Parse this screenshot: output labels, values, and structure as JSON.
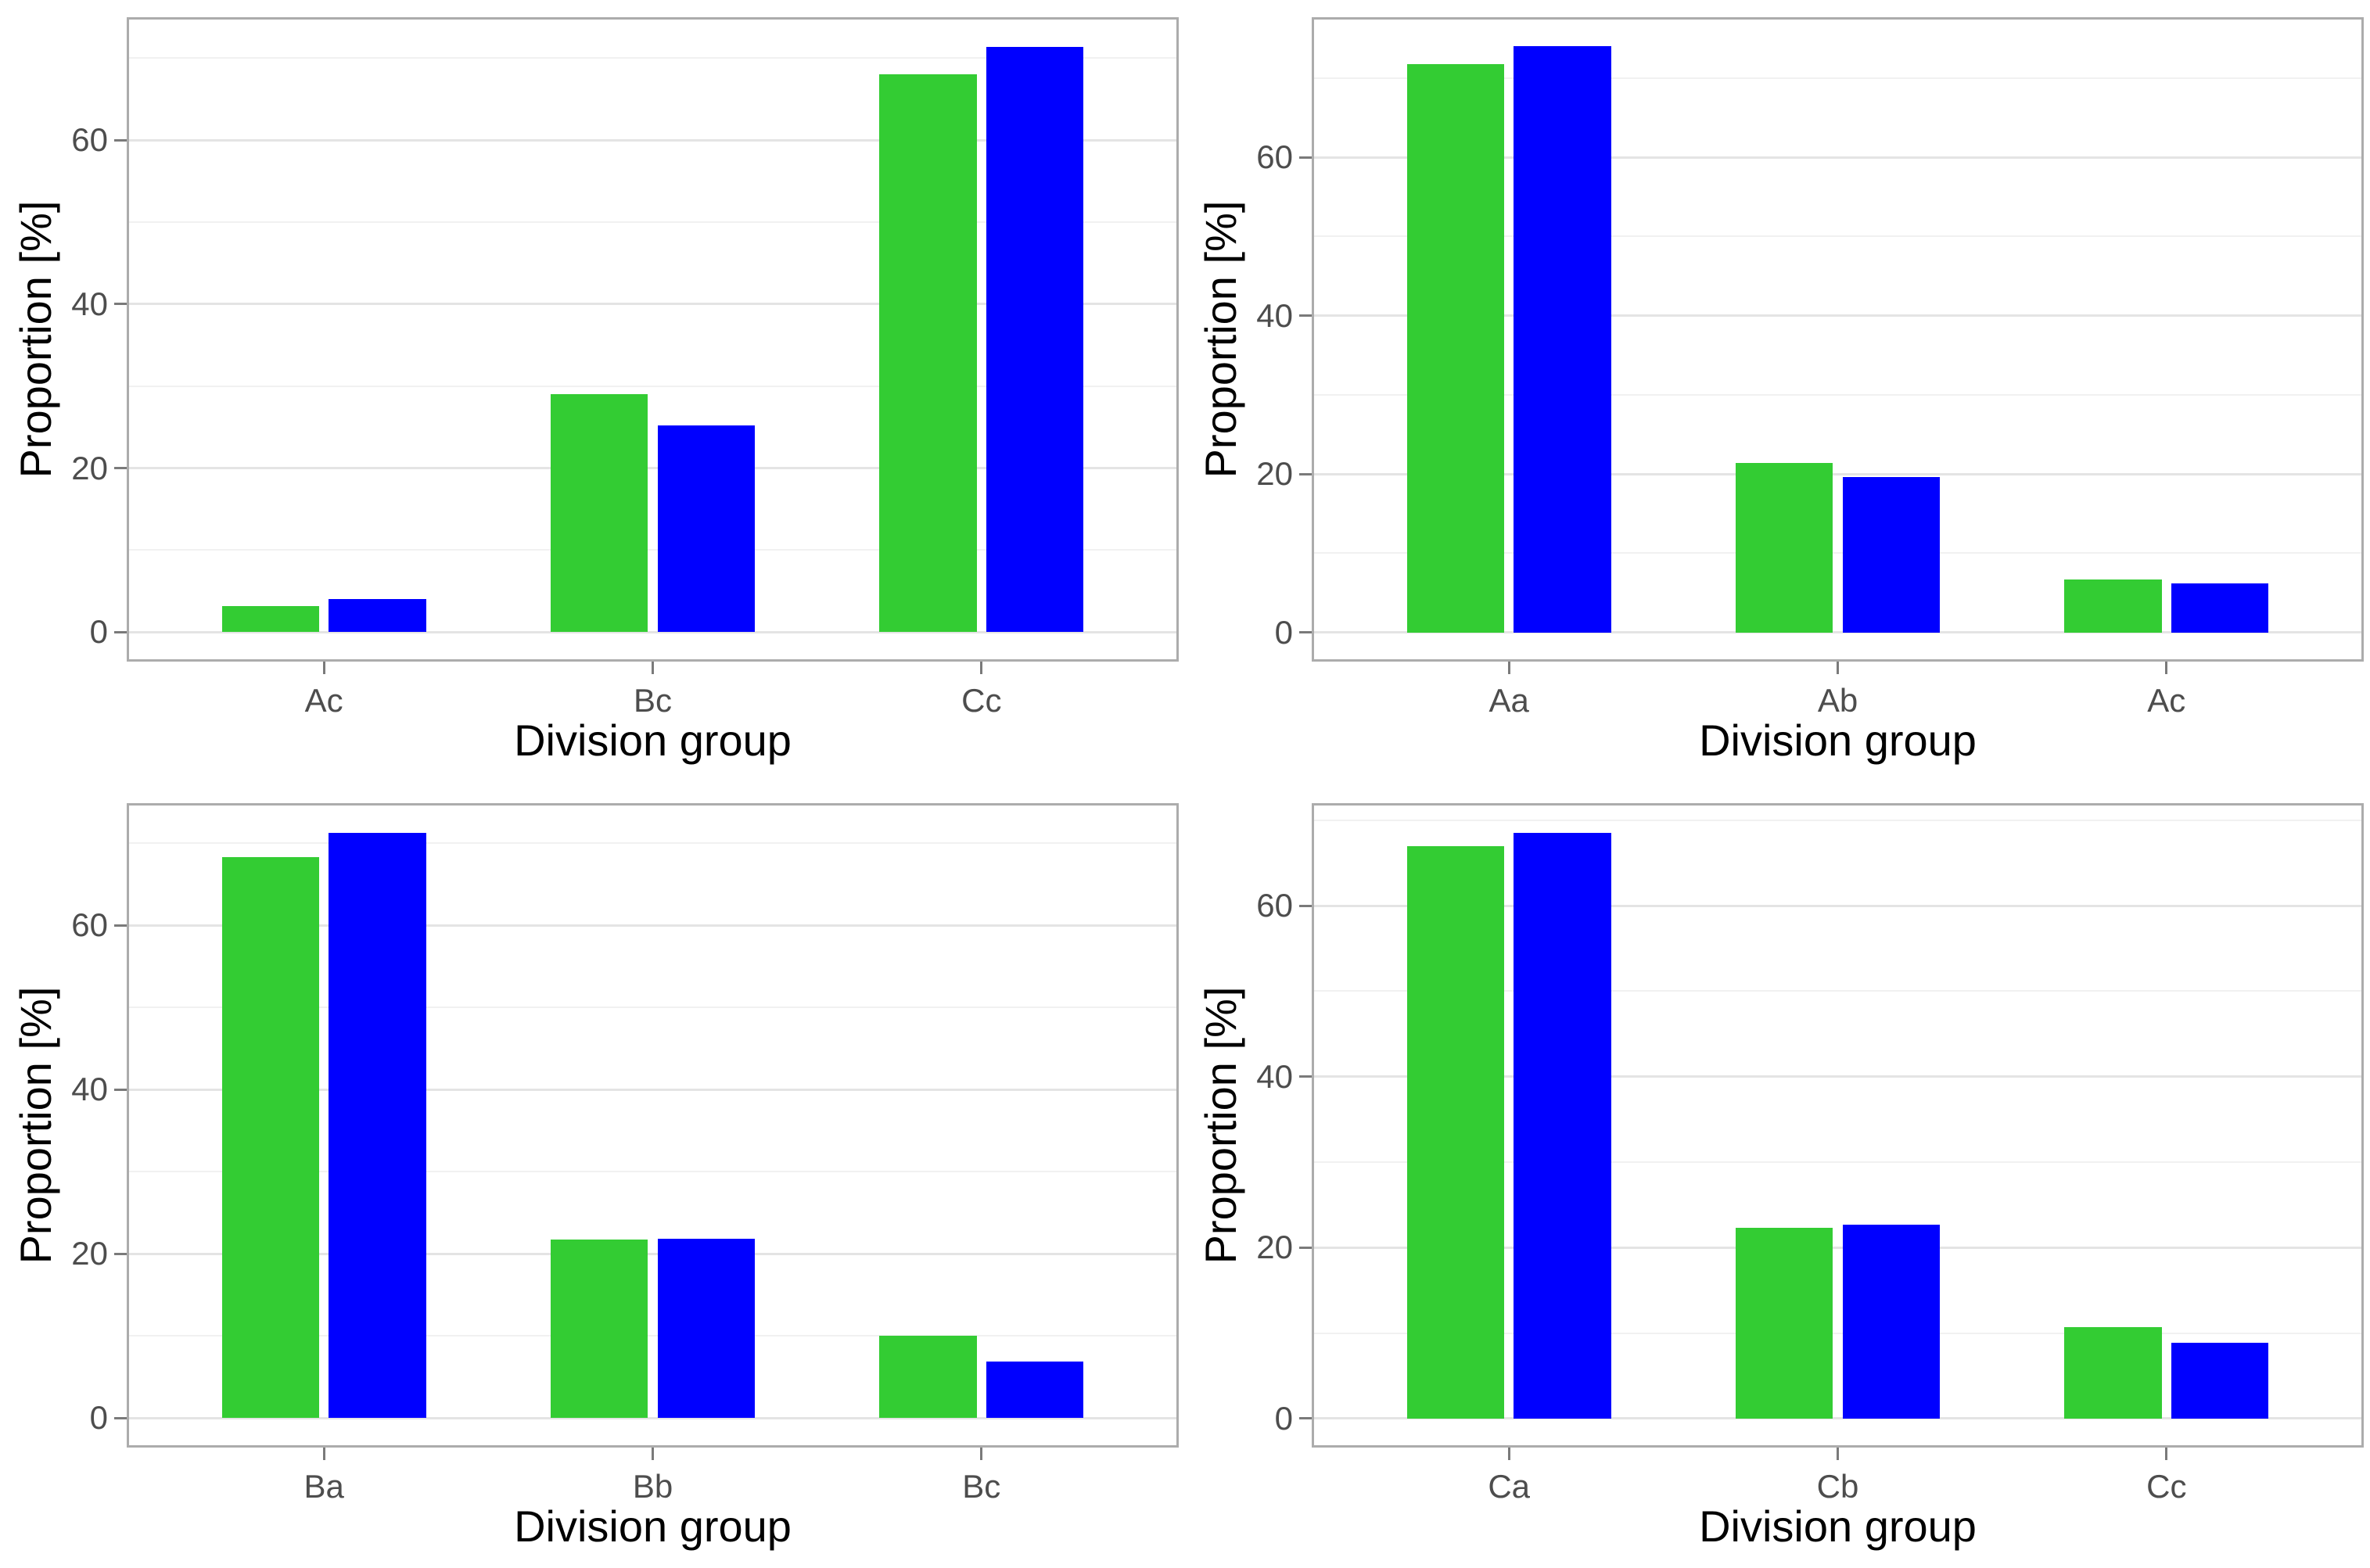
{
  "figure": {
    "xlabel": "Division group",
    "ylabel": "Proportion [%]",
    "y_tick_labels": [
      "0",
      "20",
      "40",
      "60"
    ],
    "colors": {
      "green_bar": "#33CC33",
      "blue_bar": "#0000FF",
      "axis_text": "#4D4D4D",
      "panel_border": "#ACACAC"
    }
  },
  "chart_data": [
    {
      "type": "bar",
      "panel": "top-left",
      "xlabel": "Division group",
      "ylabel": "Proportion [%]",
      "categories": [
        "Ac",
        "Bc",
        "Cc"
      ],
      "series": [
        {
          "name": "green",
          "color": "#33CC33",
          "values": [
            3.2,
            29.0,
            68.0
          ]
        },
        {
          "name": "blue",
          "color": "#0000FF",
          "values": [
            4.0,
            25.2,
            71.4
          ]
        }
      ],
      "y_major_ticks": [
        0,
        20,
        40,
        60
      ],
      "y_minor_gridlines": [
        10,
        30,
        50,
        70
      ],
      "ylim": [
        -3.6,
        75.0
      ],
      "grid": true,
      "legend": "none"
    },
    {
      "type": "bar",
      "panel": "top-right",
      "xlabel": "Division group",
      "ylabel": "Proportion [%]",
      "categories": [
        "Aa",
        "Ab",
        "Ac"
      ],
      "series": [
        {
          "name": "green",
          "color": "#33CC33",
          "values": [
            71.8,
            21.4,
            6.7
          ]
        },
        {
          "name": "blue",
          "color": "#0000FF",
          "values": [
            74.0,
            19.6,
            6.2
          ]
        }
      ],
      "y_major_ticks": [
        0,
        20,
        40,
        60
      ],
      "y_minor_gridlines": [
        10,
        30,
        50,
        70
      ],
      "ylim": [
        -3.7,
        77.7
      ],
      "grid": true,
      "legend": "none"
    },
    {
      "type": "bar",
      "panel": "bottom-left",
      "xlabel": "Division group",
      "ylabel": "Proportion [%]",
      "categories": [
        "Ba",
        "Bb",
        "Bc"
      ],
      "series": [
        {
          "name": "green",
          "color": "#33CC33",
          "values": [
            68.3,
            21.7,
            10.0
          ]
        },
        {
          "name": "blue",
          "color": "#0000FF",
          "values": [
            71.3,
            21.8,
            6.9
          ]
        }
      ],
      "y_major_ticks": [
        0,
        20,
        40,
        60
      ],
      "y_minor_gridlines": [
        10,
        30,
        50,
        70
      ],
      "ylim": [
        -3.6,
        74.9
      ],
      "grid": true,
      "legend": "none"
    },
    {
      "type": "bar",
      "panel": "bottom-right",
      "xlabel": "Division group",
      "ylabel": "Proportion [%]",
      "categories": [
        "Ca",
        "Cb",
        "Cc"
      ],
      "series": [
        {
          "name": "green",
          "color": "#33CC33",
          "values": [
            67.0,
            22.3,
            10.7
          ]
        },
        {
          "name": "blue",
          "color": "#0000FF",
          "values": [
            68.5,
            22.7,
            8.9
          ]
        }
      ],
      "y_major_ticks": [
        0,
        20,
        40,
        60
      ],
      "y_minor_gridlines": [
        10,
        30,
        50,
        70
      ],
      "ylim": [
        -3.4,
        72.0
      ],
      "grid": true,
      "legend": "none"
    }
  ]
}
